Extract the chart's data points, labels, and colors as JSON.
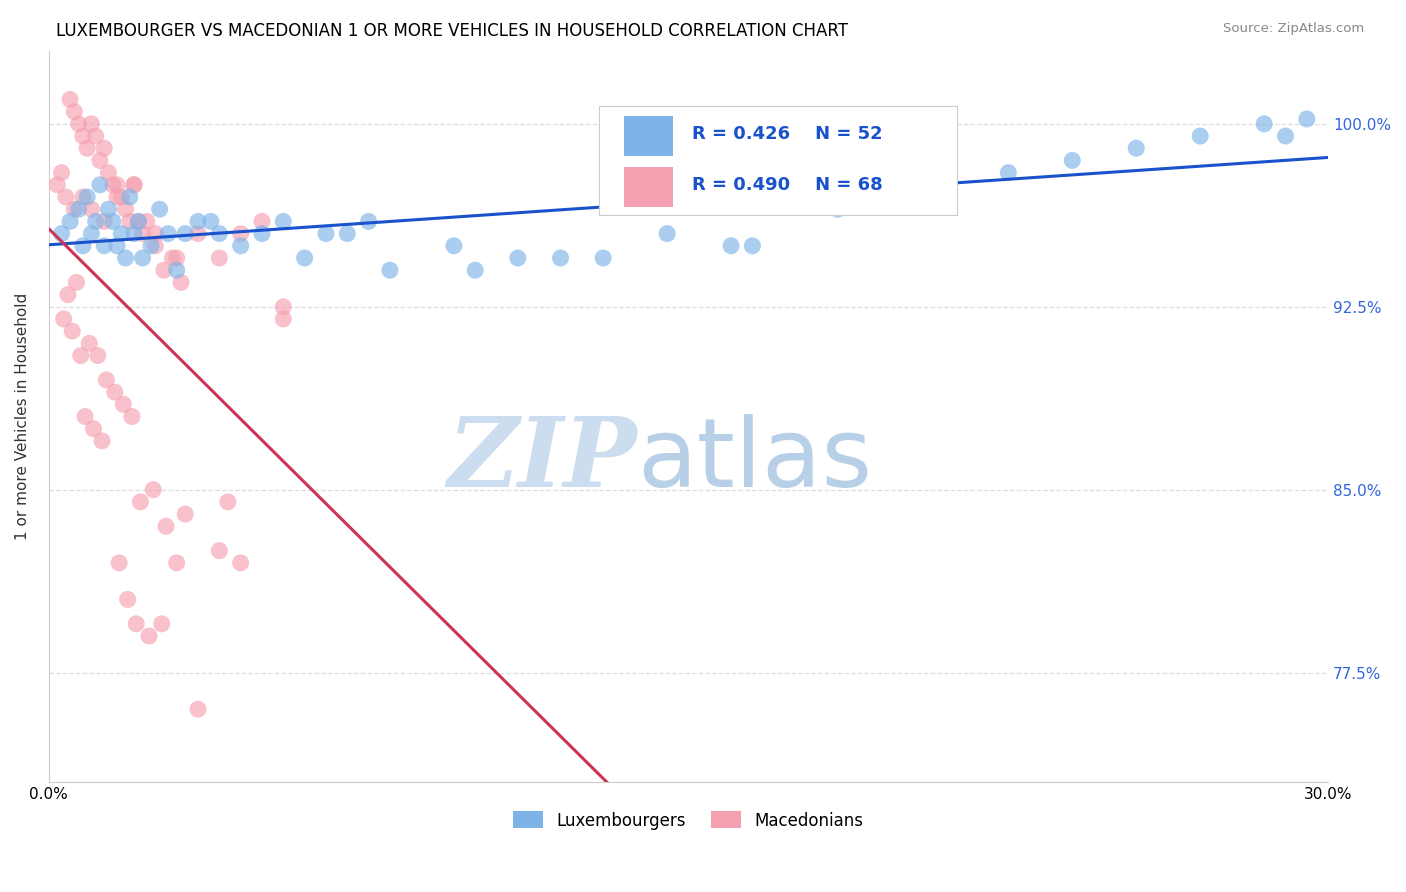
{
  "title": "LUXEMBOURGER VS MACEDONIAN 1 OR MORE VEHICLES IN HOUSEHOLD CORRELATION CHART",
  "source": "Source: ZipAtlas.com",
  "ylabel": "1 or more Vehicles in Household",
  "xlim": [
    0.0,
    30.0
  ],
  "ylim": [
    73.0,
    103.0
  ],
  "yticks": [
    77.5,
    85.0,
    92.5,
    100.0
  ],
  "ytick_labels": [
    "77.5%",
    "85.0%",
    "92.5%",
    "100.0%"
  ],
  "blue_color": "#7EB3E8",
  "pink_color": "#F5A0B0",
  "blue_line_color": "#1A52CC",
  "pink_line_color": "#CC3355",
  "background_color": "#ffffff",
  "grid_color": "#dddddd",
  "blue_x": [
    0.3,
    0.5,
    0.7,
    0.8,
    0.9,
    1.0,
    1.1,
    1.2,
    1.3,
    1.4,
    1.5,
    1.6,
    1.7,
    1.8,
    1.9,
    2.0,
    2.1,
    2.2,
    2.4,
    2.6,
    2.8,
    3.0,
    3.5,
    4.0,
    5.0,
    6.0,
    7.0,
    8.0,
    9.5,
    11.0,
    13.0,
    16.5,
    18.0,
    20.0,
    22.5,
    24.0,
    25.5,
    27.0,
    28.5,
    29.0,
    29.5,
    3.2,
    3.8,
    4.5,
    5.5,
    6.5,
    7.5,
    10.0,
    12.0,
    14.5,
    16.0,
    18.5
  ],
  "blue_y": [
    95.5,
    96.0,
    96.5,
    95.0,
    97.0,
    95.5,
    96.0,
    97.5,
    95.0,
    96.5,
    96.0,
    95.0,
    95.5,
    94.5,
    97.0,
    95.5,
    96.0,
    94.5,
    95.0,
    96.5,
    95.5,
    94.0,
    96.0,
    95.5,
    95.5,
    94.5,
    95.5,
    94.0,
    95.0,
    94.5,
    94.5,
    95.0,
    97.0,
    98.5,
    98.0,
    98.5,
    99.0,
    99.5,
    100.0,
    99.5,
    100.2,
    95.5,
    96.0,
    95.0,
    96.0,
    95.5,
    96.0,
    94.0,
    94.5,
    95.5,
    95.0,
    96.5
  ],
  "pink_x": [
    0.2,
    0.3,
    0.4,
    0.5,
    0.6,
    0.7,
    0.8,
    0.9,
    1.0,
    1.1,
    1.2,
    1.3,
    1.4,
    1.5,
    1.6,
    1.7,
    1.8,
    1.9,
    2.0,
    2.1,
    2.2,
    2.3,
    2.5,
    2.7,
    2.9,
    3.1,
    3.5,
    4.0,
    4.5,
    5.0,
    5.5,
    0.35,
    0.55,
    0.75,
    0.95,
    1.15,
    1.35,
    1.55,
    1.75,
    1.95,
    2.15,
    2.45,
    2.75,
    3.2,
    4.2,
    0.45,
    0.65,
    0.85,
    1.05,
    1.25,
    1.65,
    1.85,
    2.05,
    2.35,
    2.65,
    3.0,
    3.5,
    4.0,
    0.6,
    0.8,
    1.0,
    1.3,
    1.6,
    2.0,
    2.5,
    3.0,
    4.5,
    5.5
  ],
  "pink_y": [
    97.5,
    98.0,
    97.0,
    101.0,
    100.5,
    100.0,
    99.5,
    99.0,
    100.0,
    99.5,
    98.5,
    99.0,
    98.0,
    97.5,
    97.5,
    97.0,
    96.5,
    96.0,
    97.5,
    96.0,
    95.5,
    96.0,
    95.5,
    94.0,
    94.5,
    93.5,
    95.5,
    94.5,
    95.5,
    96.0,
    92.5,
    92.0,
    91.5,
    90.5,
    91.0,
    90.5,
    89.5,
    89.0,
    88.5,
    88.0,
    84.5,
    85.0,
    83.5,
    84.0,
    84.5,
    93.0,
    93.5,
    88.0,
    87.5,
    87.0,
    82.0,
    80.5,
    79.5,
    79.0,
    79.5,
    82.0,
    76.0,
    82.5,
    96.5,
    97.0,
    96.5,
    96.0,
    97.0,
    97.5,
    95.0,
    94.5,
    82.0,
    92.0
  ]
}
